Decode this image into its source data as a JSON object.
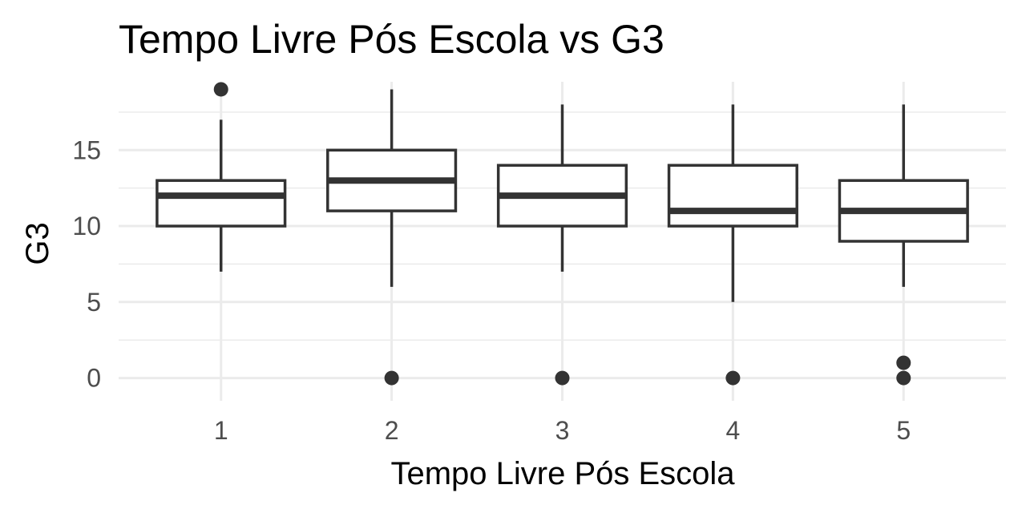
{
  "chart_data": {
    "type": "boxplot",
    "title": "Tempo Livre Pós Escola vs  G3",
    "xlabel": "Tempo Livre Pós Escola",
    "ylabel": "G3",
    "categories": [
      "1",
      "2",
      "3",
      "4",
      "5"
    ],
    "y_ticks": [
      0,
      5,
      10,
      15
    ],
    "ylim": [
      -1.5,
      19.5
    ],
    "grid": true,
    "boxes": [
      {
        "category": "1",
        "whisker_low": 7,
        "q1": 10,
        "median": 12,
        "q3": 13,
        "whisker_high": 17,
        "outliers": [
          19
        ]
      },
      {
        "category": "2",
        "whisker_low": 6,
        "q1": 11,
        "median": 13,
        "q3": 15,
        "whisker_high": 19,
        "outliers": [
          0
        ]
      },
      {
        "category": "3",
        "whisker_low": 7,
        "q1": 10,
        "median": 12,
        "q3": 14,
        "whisker_high": 18,
        "outliers": [
          0
        ]
      },
      {
        "category": "4",
        "whisker_low": 5,
        "q1": 10,
        "median": 11,
        "q3": 14,
        "whisker_high": 18,
        "outliers": [
          0
        ]
      },
      {
        "category": "5",
        "whisker_low": 6,
        "q1": 9,
        "median": 11,
        "q3": 13,
        "whisker_high": 18,
        "outliers": [
          0,
          1
        ]
      }
    ]
  }
}
